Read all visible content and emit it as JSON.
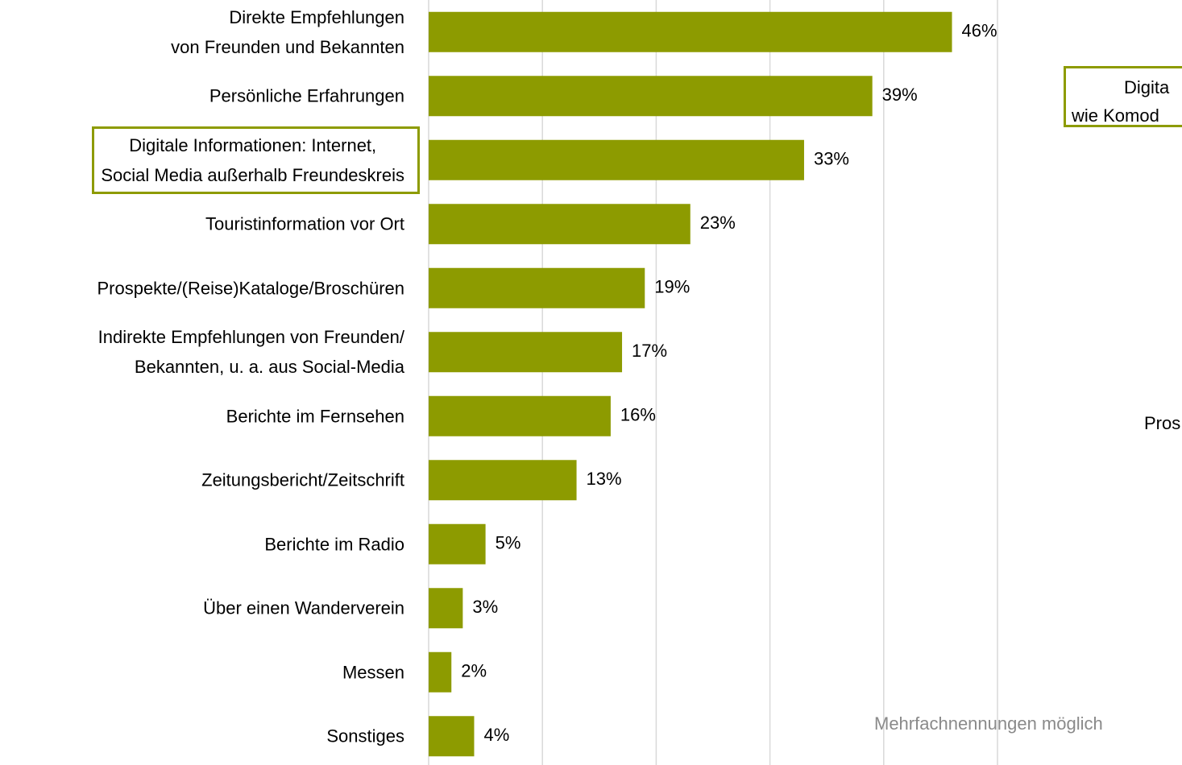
{
  "chart_data": {
    "type": "barh",
    "categories": [
      "Direkte Empfehlungen\nvon Freunden und Bekannten",
      "Persönliche Erfahrungen",
      "Digitale Informationen: Internet,\nSocial Media außerhalb Freundeskreis",
      "Touristinformation vor Ort",
      "Prospekte/(Reise)Kataloge/Broschüren",
      "Indirekte Empfehlungen von Freunden/\nBekannten, u. a. aus Social-Media",
      "Berichte im Fernsehen",
      "Zeitungsbericht/Zeitschrift",
      "Berichte im Radio",
      "Über einen Wanderverein",
      "Messen",
      "Sonstiges"
    ],
    "values": [
      46,
      39,
      33,
      23,
      19,
      17,
      16,
      13,
      5,
      3,
      2,
      4
    ],
    "value_labels": [
      "46%",
      "39%",
      "33%",
      "23%",
      "19%",
      "17%",
      "16%",
      "13%",
      "5%",
      "3%",
      "2%",
      "4%"
    ],
    "color": "#8d9b00",
    "xlim": [
      0,
      50
    ],
    "xticks": [
      0,
      10,
      20,
      30,
      40,
      50
    ],
    "grid": true,
    "highlight": [
      2
    ],
    "annotation_box": [
      "Digita",
      "wie Komod"
    ],
    "annotations": [
      "Pros",
      "Mehrfachnennungen möglich"
    ]
  }
}
